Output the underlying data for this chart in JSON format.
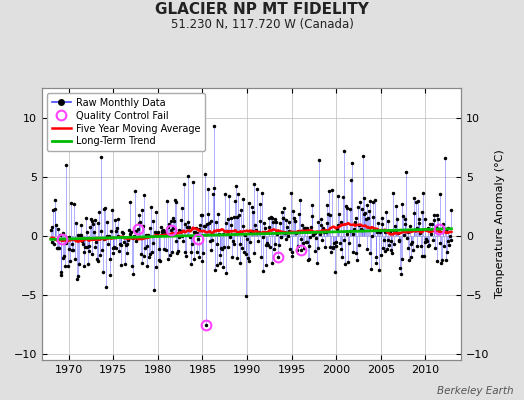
{
  "title": "GLACIER NP MT FIDELITY",
  "subtitle": "51.230 N, 117.720 W (Canada)",
  "ylabel": "Temperature Anomaly (°C)",
  "watermark": "Berkeley Earth",
  "xmin": 1967.0,
  "xmax": 2014.0,
  "ymin": -10.5,
  "ymax": 12.5,
  "yticks": [
    -10,
    -5,
    0,
    5,
    10
  ],
  "xticks": [
    1970,
    1975,
    1980,
    1985,
    1990,
    1995,
    2000,
    2005,
    2010
  ],
  "start_year": 1968,
  "end_year": 2012,
  "background_color": "#e0e0e0",
  "plot_bg_color": "#ffffff",
  "raw_line_color": "#4444ff",
  "raw_line_alpha": 0.6,
  "raw_dot_color": "#000000",
  "ma_color": "#ff0000",
  "trend_color": "#00bb00",
  "qc_color": "#ff44ff",
  "seed": 42,
  "trend_slope": 0.02,
  "trend_intercept": -0.3,
  "ma_window": 60,
  "qc_fail_times": [
    1969.25,
    1977.75,
    1981.5,
    1984.5,
    1985.4,
    1993.5,
    1996.0,
    2011.5
  ],
  "qc_fail_values": [
    -0.3,
    0.6,
    0.5,
    -0.3,
    -7.5,
    -1.8,
    -1.2,
    0.6
  ]
}
